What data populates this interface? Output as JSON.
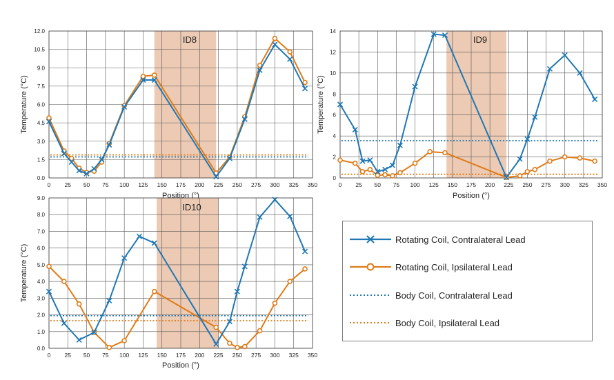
{
  "colors": {
    "contralateral": "#1f77b4",
    "ipsilateral": "#e07b17",
    "shade": "#e9c1a7"
  },
  "chart_data": [
    {
      "type": "line",
      "title": "ID8",
      "xlabel": "Position (°)",
      "ylabel": "Temperature (°C)",
      "xlim": [
        0,
        350
      ],
      "ylim": [
        0,
        12
      ],
      "xticks": [
        "0",
        "25",
        "50",
        "75",
        "100",
        "125",
        "150",
        "175",
        "200",
        "225",
        "250",
        "275",
        "300",
        "325",
        "350"
      ],
      "yticks": [
        "0.0",
        "1.5",
        "3.0",
        "4.5",
        "6.0",
        "7.5",
        "9.0",
        "10.5",
        "12.0"
      ],
      "shaded_range": [
        140,
        222
      ],
      "series": [
        {
          "name": "Rotating Coil, Contralateral Lead",
          "x": [
            0,
            20,
            30,
            40,
            50,
            60,
            70,
            80,
            100,
            125,
            140,
            222,
            240,
            260,
            280,
            300,
            320,
            340
          ],
          "y": [
            4.6,
            2.0,
            1.3,
            0.6,
            0.35,
            0.75,
            1.5,
            2.7,
            5.8,
            8.0,
            8.0,
            0.1,
            1.6,
            4.8,
            8.8,
            10.9,
            9.7,
            7.3
          ]
        },
        {
          "name": "Rotating Coil, Ipsilateral Lead",
          "x": [
            0,
            20,
            30,
            40,
            50,
            60,
            70,
            80,
            100,
            125,
            140,
            222,
            240,
            260,
            280,
            300,
            320,
            340
          ],
          "y": [
            4.9,
            2.2,
            1.6,
            0.8,
            0.45,
            0.55,
            1.3,
            2.8,
            5.9,
            8.3,
            8.4,
            0.4,
            1.7,
            5.0,
            9.2,
            11.4,
            10.3,
            7.8
          ]
        },
        {
          "name": "Body Coil, Contralateral Lead",
          "constant": 1.72
        },
        {
          "name": "Body Coil, Ipsilateral Lead",
          "constant": 1.88
        }
      ]
    },
    {
      "type": "line",
      "title": "ID9",
      "xlabel": "Position (°)",
      "ylabel": "Temperature (°C)",
      "xlim": [
        0,
        350
      ],
      "ylim": [
        0,
        14
      ],
      "xticks": [
        "0",
        "25",
        "50",
        "75",
        "100",
        "125",
        "150",
        "175",
        "200",
        "225",
        "250",
        "275",
        "300",
        "325",
        "350"
      ],
      "yticks": [
        "0",
        "2",
        "4",
        "6",
        "8",
        "10",
        "12",
        "14"
      ],
      "shaded_range": [
        142,
        222
      ],
      "series": [
        {
          "name": "Rotating Coil, Contralateral Lead",
          "x": [
            0,
            20,
            30,
            40,
            50,
            60,
            70,
            80,
            100,
            125,
            140,
            222,
            240,
            250,
            260,
            280,
            300,
            320,
            340
          ],
          "y": [
            7.0,
            4.6,
            1.6,
            1.7,
            0.6,
            0.8,
            1.2,
            3.1,
            8.7,
            13.7,
            13.6,
            0.05,
            1.8,
            3.7,
            5.8,
            10.4,
            11.7,
            10.0,
            7.5
          ]
        },
        {
          "name": "Rotating Coil, Ipsilateral Lead",
          "x": [
            0,
            20,
            30,
            40,
            50,
            60,
            70,
            80,
            100,
            120,
            140,
            222,
            240,
            250,
            260,
            280,
            300,
            320,
            340
          ],
          "y": [
            1.7,
            1.4,
            0.6,
            0.8,
            0.25,
            0.3,
            0.2,
            0.5,
            1.4,
            2.5,
            2.4,
            0.05,
            0.2,
            0.6,
            0.8,
            1.6,
            2.0,
            1.9,
            1.6
          ]
        },
        {
          "name": "Body Coil, Contralateral Lead",
          "constant": 3.55
        },
        {
          "name": "Body Coil, Ipsilateral Lead",
          "constant": 0.35
        }
      ]
    },
    {
      "type": "line",
      "title": "ID10",
      "xlabel": "Position (°)",
      "ylabel": "Temperature (°C)",
      "xlim": [
        0,
        350
      ],
      "ylim": [
        0,
        9
      ],
      "xticks": [
        "0",
        "25",
        "50",
        "75",
        "100",
        "125",
        "150",
        "175",
        "200",
        "225",
        "250",
        "275",
        "300",
        "325",
        "350"
      ],
      "yticks": [
        "0.0",
        "1.0",
        "2.0",
        "3.0",
        "4.0",
        "5.0",
        "6.0",
        "7.0",
        "8.0",
        "9.0"
      ],
      "shaded_range": [
        143,
        225
      ],
      "series": [
        {
          "name": "Rotating Coil, Contralateral Lead",
          "x": [
            0,
            20,
            40,
            60,
            80,
            100,
            120,
            140,
            222,
            240,
            250,
            260,
            280,
            300,
            320,
            340
          ],
          "y": [
            3.4,
            1.5,
            0.5,
            0.95,
            2.85,
            5.4,
            6.7,
            6.3,
            0.25,
            1.6,
            3.4,
            4.9,
            7.85,
            8.9,
            7.9,
            5.8
          ]
        },
        {
          "name": "Rotating Coil, Ipsilateral Lead",
          "x": [
            0,
            20,
            40,
            60,
            80,
            100,
            140,
            222,
            240,
            250,
            260,
            280,
            300,
            320,
            340
          ],
          "y": [
            4.9,
            4.0,
            2.65,
            0.95,
            0.05,
            0.45,
            3.4,
            1.25,
            0.3,
            0.05,
            0.1,
            1.05,
            2.7,
            4.0,
            4.75
          ]
        },
        {
          "name": "Body Coil, Contralateral Lead",
          "constant": 1.95
        },
        {
          "name": "Body Coil, Ipsilateral Lead",
          "constant": 1.65
        }
      ]
    }
  ],
  "legend": {
    "items": [
      {
        "label": "Rotating Coil, Contralateral Lead",
        "color": "#1f77b4",
        "style": "solid",
        "marker": "x"
      },
      {
        "label": "Rotating Coil, Ipsilateral Lead",
        "color": "#e07b17",
        "style": "solid",
        "marker": "o"
      },
      {
        "label": "Body Coil, Contralateral Lead",
        "color": "#1f77b4",
        "style": "dotted",
        "marker": ""
      },
      {
        "label": "Body Coil, Ipsilateral Lead",
        "color": "#e07b17",
        "style": "dotted",
        "marker": ""
      }
    ]
  }
}
